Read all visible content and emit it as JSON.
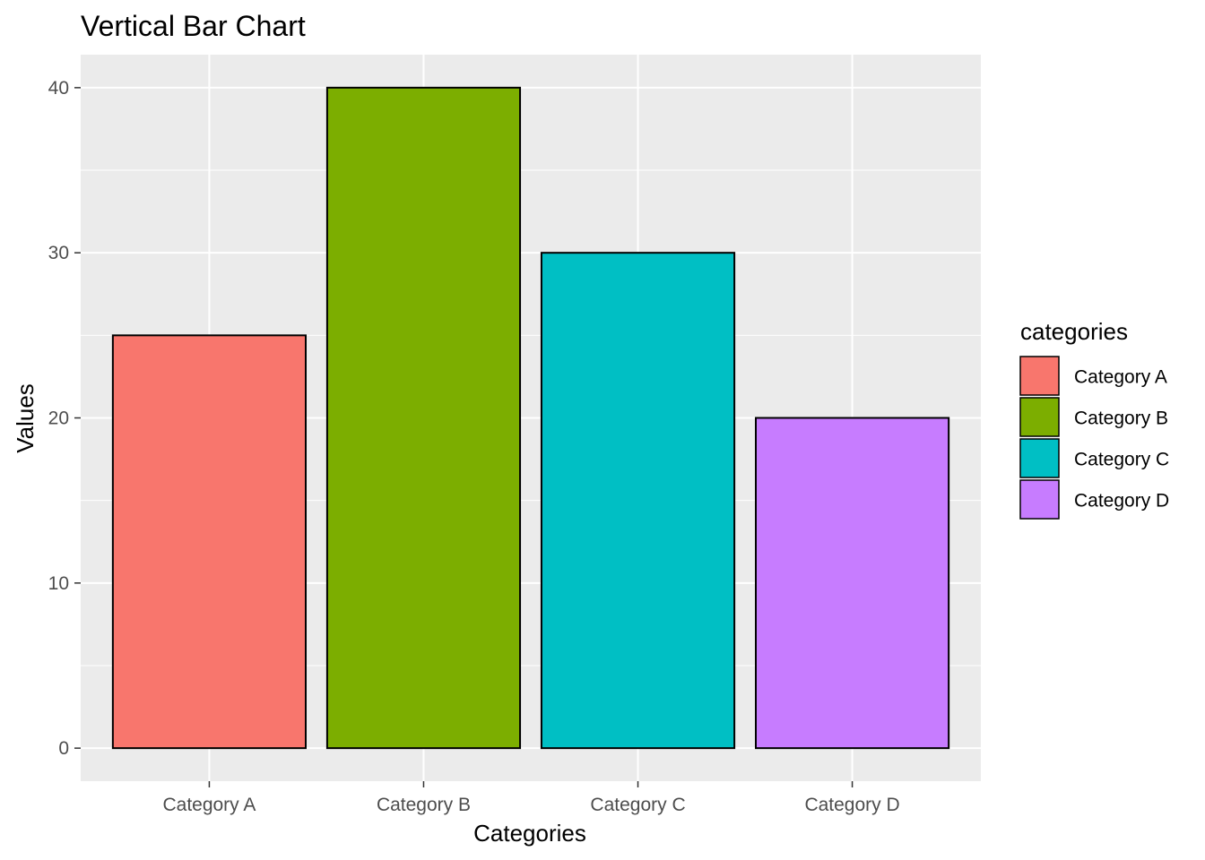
{
  "chart_data": {
    "type": "bar",
    "title": "Vertical Bar Chart",
    "xlabel": "Categories",
    "ylabel": "Values",
    "categories": [
      "Category A",
      "Category B",
      "Category C",
      "Category D"
    ],
    "values": [
      25,
      40,
      30,
      20
    ],
    "colors": [
      "#F8766D",
      "#7CAE00",
      "#00BFC4",
      "#C77CFF"
    ],
    "bar_outline_color": "#000000",
    "panel_background": "#EBEBEB",
    "gridline_color": "#FFFFFF",
    "ylim": [
      -2,
      42
    ],
    "yticks": [
      0,
      10,
      20,
      30,
      40
    ],
    "ytick_labels": [
      "0",
      "10",
      "20",
      "30",
      "40"
    ],
    "grid": true,
    "legend": {
      "title": "categories",
      "placement": "right",
      "entries": [
        "Category A",
        "Category B",
        "Category C",
        "Category D"
      ]
    }
  }
}
